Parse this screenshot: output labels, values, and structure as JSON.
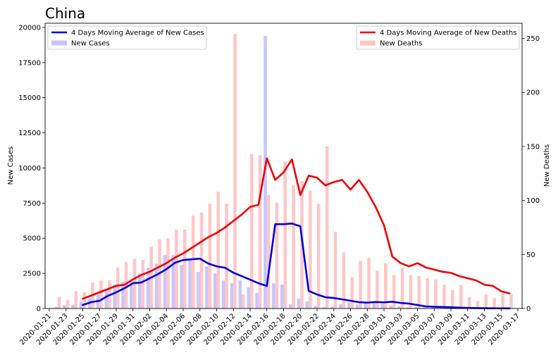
{
  "chart_data": {
    "type": "bar+line",
    "title": "China",
    "x_tick_labels": [
      "2020-01-21",
      "2020-01-23",
      "2020-01-25",
      "2020-01-27",
      "2020-01-29",
      "2020-01-31",
      "2020-02-02",
      "2020-02-04",
      "2020-02-06",
      "2020-02-08",
      "2020-02-10",
      "2020-02-12",
      "2020-02-14",
      "2020-02-16",
      "2020-02-18",
      "2020-02-20",
      "2020-02-22",
      "2020-02-24",
      "2020-02-26",
      "2020-02-28",
      "2020-03-01",
      "2020-03-03",
      "2020-03-05",
      "2020-03-07",
      "2020-03-09",
      "2020-03-11",
      "2020-03-13",
      "2020-03-15",
      "2020-03-17"
    ],
    "dates": [
      "2020-01-22",
      "2020-01-23",
      "2020-01-24",
      "2020-01-25",
      "2020-01-26",
      "2020-01-27",
      "2020-01-28",
      "2020-01-29",
      "2020-01-30",
      "2020-01-31",
      "2020-02-01",
      "2020-02-02",
      "2020-02-03",
      "2020-02-04",
      "2020-02-05",
      "2020-02-06",
      "2020-02-07",
      "2020-02-08",
      "2020-02-09",
      "2020-02-10",
      "2020-02-11",
      "2020-02-12",
      "2020-02-13",
      "2020-02-14",
      "2020-02-15",
      "2020-02-16",
      "2020-02-17",
      "2020-02-18",
      "2020-02-19",
      "2020-02-20",
      "2020-02-21",
      "2020-02-22",
      "2020-02-23",
      "2020-02-24",
      "2020-02-25",
      "2020-02-26",
      "2020-02-27",
      "2020-02-28",
      "2020-02-29",
      "2020-03-01",
      "2020-03-02",
      "2020-03-03",
      "2020-03-04",
      "2020-03-05",
      "2020-03-06",
      "2020-03-07",
      "2020-03-08",
      "2020-03-09",
      "2020-03-10",
      "2020-03-11",
      "2020-03-12",
      "2020-03-13",
      "2020-03-14",
      "2020-03-15",
      "2020-03-16"
    ],
    "left_axis": {
      "label": "New Cases",
      "ylim": [
        0,
        20300
      ],
      "ticks": [
        0,
        2500,
        5000,
        7500,
        10000,
        12500,
        15000,
        17500,
        20000
      ]
    },
    "right_axis": {
      "label": "New Deaths",
      "ylim": [
        0,
        264
      ],
      "ticks": [
        0,
        50,
        100,
        150,
        200,
        250
      ]
    },
    "series": [
      {
        "name": "New Cases",
        "kind": "bar",
        "axis": "left",
        "color": "#c6c6ff",
        "values": [
          100,
          250,
          270,
          500,
          700,
          1000,
          1400,
          1700,
          1900,
          2000,
          2500,
          2900,
          3200,
          3800,
          3800,
          3100,
          3500,
          2600,
          3000,
          2500,
          2000,
          1800,
          2000,
          1500,
          1100,
          19400,
          1800,
          1700,
          300,
          700,
          500,
          200,
          100,
          120,
          300,
          400,
          300,
          450,
          400,
          350,
          200,
          150,
          100,
          120,
          80,
          50,
          40,
          30,
          20,
          10,
          10,
          15,
          20,
          15,
          10
        ]
      },
      {
        "name": "4 Days Moving Average of New Cases",
        "kind": "line",
        "axis": "left",
        "color": "#0000dd",
        "values": [
          null,
          null,
          null,
          250,
          450,
          550,
          900,
          1150,
          1450,
          1800,
          1850,
          2150,
          2450,
          2800,
          3250,
          3450,
          3500,
          3550,
          3200,
          3000,
          2900,
          2550,
          2300,
          2050,
          1800,
          1600,
          6000,
          6000,
          6050,
          5850,
          1250,
          1000,
          800,
          750,
          650,
          550,
          450,
          420,
          460,
          440,
          480,
          400,
          350,
          250,
          150,
          120,
          110,
          90,
          60,
          40,
          30,
          20,
          15,
          12,
          10
        ]
      },
      {
        "name": "New Deaths",
        "kind": "bar",
        "axis": "right",
        "color": "#ffc6c6",
        "values": [
          11,
          8,
          16,
          15,
          24,
          26,
          26,
          38,
          43,
          46,
          45,
          57,
          64,
          65,
          73,
          73,
          86,
          89,
          97,
          108,
          97,
          254,
          13,
          143,
          142,
          105,
          98,
          136,
          114,
          118,
          109,
          97,
          150,
          71,
          52,
          29,
          44,
          47,
          35,
          42,
          31,
          38,
          31,
          30,
          28,
          27,
          22,
          17,
          22,
          11,
          7,
          13,
          10,
          14,
          13
        ]
      },
      {
        "name": "4 Days Moving Average of New Deaths",
        "kind": "line",
        "axis": "right",
        "color": "#ee0000",
        "values": [
          null,
          null,
          null,
          9,
          12,
          15,
          18,
          21,
          22,
          27,
          31,
          34,
          38,
          42,
          47,
          51,
          56,
          61,
          66,
          70,
          75,
          81,
          87,
          94,
          96,
          139,
          119,
          126,
          138,
          105,
          123,
          121,
          114,
          117,
          119,
          110,
          119,
          108,
          94,
          77,
          48,
          42,
          39,
          42,
          38,
          36,
          34,
          33,
          30,
          28,
          26,
          22,
          21,
          16,
          14
        ]
      }
    ],
    "legends": [
      {
        "position": "upper-left",
        "entries": [
          "4 Days Moving Average of New Cases",
          "New Cases"
        ]
      },
      {
        "position": "upper-right",
        "entries": [
          "4 Days Moving Average of New Deaths",
          "New Deaths"
        ]
      }
    ]
  }
}
